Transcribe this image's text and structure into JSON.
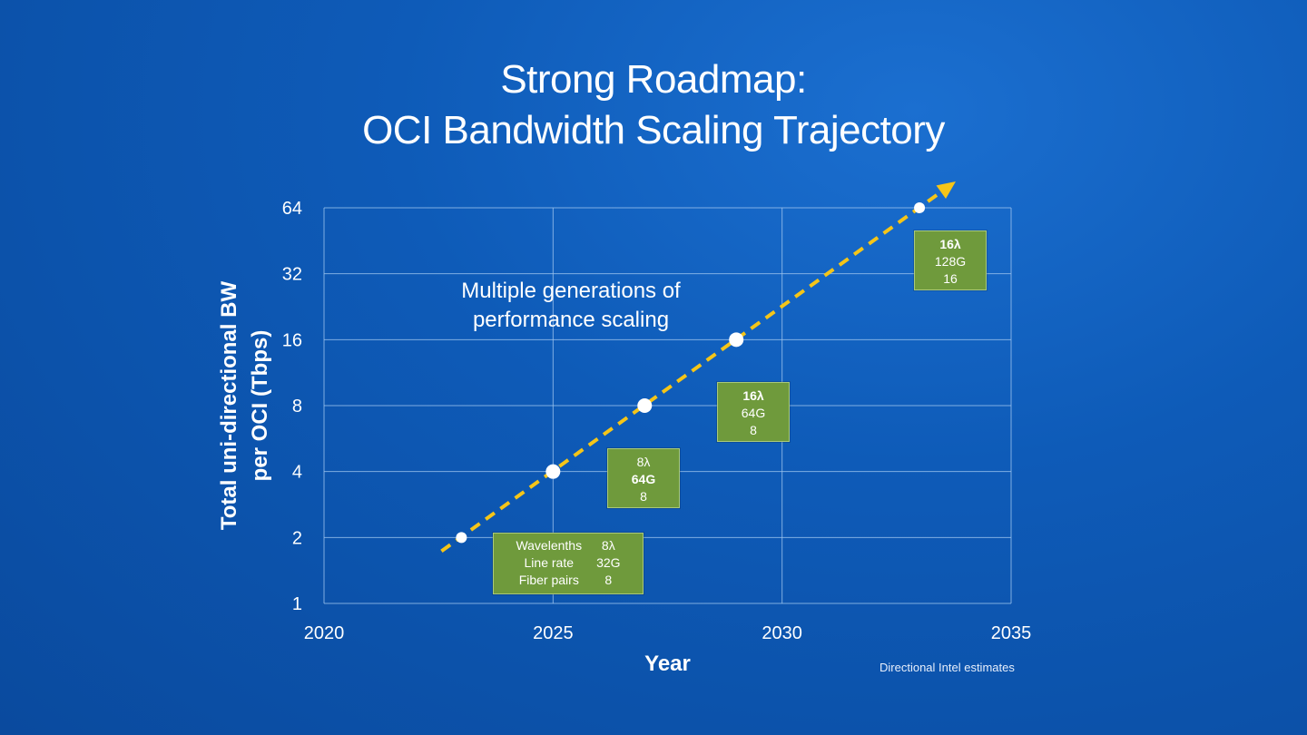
{
  "title": {
    "line1": "Strong Roadmap:",
    "line2": "OCI Bandwidth Scaling Trajectory"
  },
  "footnote": "Directional Intel estimates",
  "colors": {
    "trend_line": "#f5c518",
    "box_fill": "#6f9a3c",
    "grid": "#9cc3ee",
    "point": "#ffffff"
  },
  "chart_data": {
    "type": "line",
    "title": "",
    "xlabel": "Year",
    "ylabel": "Total uni-directional BW per OCI (Tbps)",
    "ylabel_lines": [
      "Total uni-directional BW",
      "per OCI (Tbps)"
    ],
    "xlim": [
      2020,
      2035
    ],
    "ylim": [
      1,
      64
    ],
    "yscale": "log2",
    "xticks": [
      2020,
      2025,
      2030,
      2035
    ],
    "yticks": [
      1,
      2,
      4,
      8,
      16,
      32,
      64
    ],
    "grid": true,
    "series": [
      {
        "x": [
          2023,
          2025,
          2027,
          2029,
          2033
        ],
        "y": [
          2,
          4,
          8,
          16,
          64
        ]
      }
    ],
    "annotation": "Multiple generations of performance scaling",
    "annotation_lines": [
      "Multiple generations of",
      "performance scaling"
    ],
    "legend_box": {
      "rows": [
        {
          "label": "Wavelenths",
          "value": "8λ"
        },
        {
          "label": "Line rate",
          "value": "32G"
        },
        {
          "label": "Fiber pairs",
          "value": "8"
        }
      ]
    },
    "config_boxes": [
      {
        "wavelengths": "8λ",
        "line_rate": "64G",
        "fiber_pairs": "8",
        "bold": "line_rate"
      },
      {
        "wavelengths": "16λ",
        "line_rate": "64G",
        "fiber_pairs": "8",
        "bold": "wavelengths"
      },
      {
        "wavelengths": "16λ",
        "line_rate": "128G",
        "fiber_pairs": "16",
        "bold": "wavelengths"
      }
    ]
  }
}
